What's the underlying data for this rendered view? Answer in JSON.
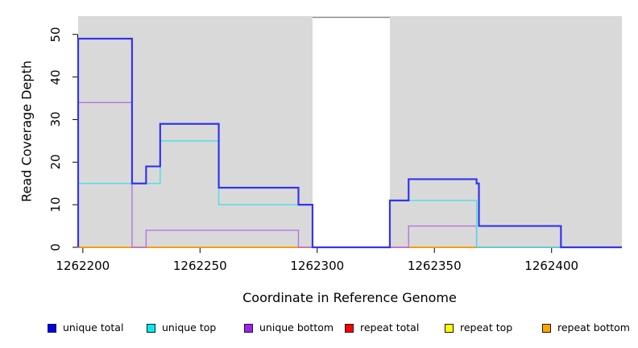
{
  "chart_data": {
    "type": "line",
    "subtype": "step-coverage-plot",
    "title": "",
    "xlabel": "Coordinate in Reference Genome",
    "ylabel": "Read Coverage Depth",
    "x_ticks": [
      1262200,
      1262250,
      1262300,
      1262350,
      1262400
    ],
    "y_ticks": [
      0,
      10,
      20,
      30,
      40,
      50
    ],
    "x_range": [
      1262198,
      1262430
    ],
    "y_range": [
      0,
      54.3
    ],
    "grid": "off",
    "plot_bg": "#d9d9d9",
    "page_bg": "#ffffff",
    "axis_color": "#000000",
    "mask_region": {
      "x_start": 1262298,
      "x_end": 1262331,
      "fill": "#ffffff",
      "top_border": "#8a8a8a"
    },
    "legend_position": "bottom",
    "series": [
      {
        "name": "unique total",
        "legend_color": "#0000ee",
        "line_color": "#3434f0",
        "line_width": 2.2,
        "draw_order": 6,
        "steps": [
          [
            1262198,
            49
          ],
          [
            1262221,
            15
          ],
          [
            1262227,
            19
          ],
          [
            1262233,
            29
          ],
          [
            1262258,
            14
          ],
          [
            1262292,
            10
          ],
          [
            1262298,
            0
          ],
          [
            1262331,
            11
          ],
          [
            1262339,
            16
          ],
          [
            1262368,
            15
          ],
          [
            1262369,
            5
          ],
          [
            1262404,
            0
          ]
        ],
        "x_end": 1262430
      },
      {
        "name": "unique top",
        "legend_color": "#00eeee",
        "line_color": "#48dfe8",
        "line_width": 1.4,
        "draw_order": 5,
        "steps": [
          [
            1262198,
            15
          ],
          [
            1262233,
            25
          ],
          [
            1262258,
            10
          ],
          [
            1262298,
            0
          ],
          [
            1262331,
            11
          ],
          [
            1262368,
            0
          ]
        ],
        "x_end": 1262430
      },
      {
        "name": "unique bottom",
        "legend_color": "#a020f0",
        "line_color": "#b472e2",
        "line_width": 1.4,
        "draw_order": 4,
        "steps": [
          [
            1262198,
            34
          ],
          [
            1262221,
            0
          ],
          [
            1262227,
            4
          ],
          [
            1262292,
            0
          ],
          [
            1262339,
            5
          ],
          [
            1262368,
            0
          ]
        ],
        "x_end": 1262430
      },
      {
        "name": "repeat total",
        "legend_color": "#ff0000",
        "line_color": "#ff4d4d",
        "line_width": 1.2,
        "draw_order": 1,
        "steps": [
          [
            1262198,
            0
          ]
        ],
        "x_end": 1262430
      },
      {
        "name": "repeat top",
        "legend_color": "#ffff00",
        "line_color": "#ffff00",
        "line_width": 1.2,
        "draw_order": 2,
        "steps": [
          [
            1262198,
            0
          ]
        ],
        "x_end": 1262430
      },
      {
        "name": "repeat bottom",
        "legend_color": "#ffa500",
        "line_color": "#ffa007",
        "line_width": 1.7,
        "draw_order": 3,
        "steps": [
          [
            1262198,
            0
          ]
        ],
        "x_end": 1262430
      }
    ]
  }
}
